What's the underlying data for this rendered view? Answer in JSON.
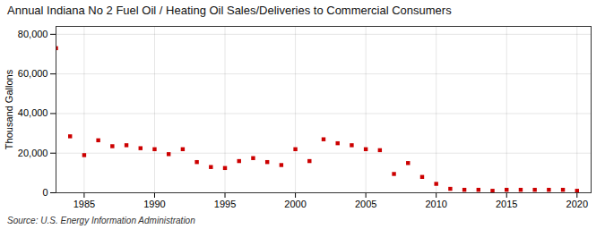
{
  "chart_data": {
    "type": "scatter",
    "title": "Annual Indiana No 2 Fuel Oil / Heating Oil Sales/Deliveries to Commercial Consumers",
    "ylabel": "Thousand Gallons",
    "caption": "Source: U.S. Energy Information Administration",
    "x": [
      1983,
      1984,
      1985,
      1986,
      1987,
      1988,
      1989,
      1990,
      1991,
      1992,
      1993,
      1994,
      1995,
      1996,
      1997,
      1998,
      1999,
      2000,
      2001,
      2002,
      2003,
      2004,
      2005,
      2006,
      2007,
      2008,
      2009,
      2010,
      2011,
      2012,
      2013,
      2014,
      2015,
      2016,
      2017,
      2018,
      2019,
      2020
    ],
    "values": [
      73000,
      28500,
      19000,
      26500,
      23500,
      24000,
      22500,
      22000,
      19500,
      22000,
      15500,
      13000,
      12500,
      16000,
      17500,
      15500,
      14000,
      22000,
      16000,
      27000,
      25000,
      24000,
      22000,
      21500,
      9500,
      15000,
      8000,
      4500,
      2000,
      1500,
      1500,
      1000,
      1500,
      1500,
      1500,
      1500,
      1500,
      1000
    ],
    "color": "#cc0000",
    "marker": "square",
    "xlim": [
      1983,
      2021
    ],
    "ylim": [
      0,
      84000
    ],
    "xticks": [
      1985,
      1990,
      1995,
      2000,
      2005,
      2010,
      2015,
      2020
    ],
    "yticks": [
      0,
      {
        "value": 20000,
        "label": "20,000"
      },
      {
        "value": 40000,
        "label": "40,000"
      },
      {
        "value": 60000,
        "label": "60,000"
      },
      {
        "value": 80000,
        "label": "80,000"
      }
    ],
    "grid": true
  }
}
